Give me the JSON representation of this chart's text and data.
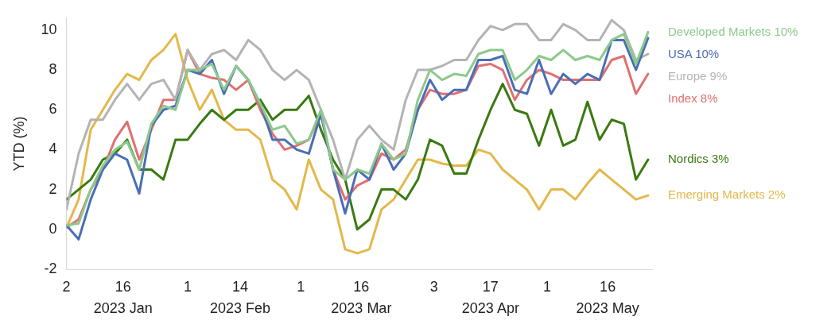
{
  "chart_data": {
    "type": "line",
    "ylabel": "YTD (%)",
    "x": [
      "2023-01-02",
      "2023-01-05",
      "2023-01-08",
      "2023-01-11",
      "2023-01-14",
      "2023-01-17",
      "2023-01-20",
      "2023-01-23",
      "2023-01-26",
      "2023-01-29",
      "2023-02-01",
      "2023-02-04",
      "2023-02-07",
      "2023-02-10",
      "2023-02-13",
      "2023-02-16",
      "2023-02-19",
      "2023-02-22",
      "2023-02-25",
      "2023-02-28",
      "2023-03-03",
      "2023-03-06",
      "2023-03-09",
      "2023-03-12",
      "2023-03-15",
      "2023-03-18",
      "2023-03-21",
      "2023-03-24",
      "2023-03-27",
      "2023-03-30",
      "2023-04-02",
      "2023-04-05",
      "2023-04-08",
      "2023-04-11",
      "2023-04-14",
      "2023-04-17",
      "2023-04-20",
      "2023-04-23",
      "2023-04-26",
      "2023-04-29",
      "2023-05-02",
      "2023-05-05",
      "2023-05-08",
      "2023-05-11",
      "2023-05-14",
      "2023-05-17",
      "2023-05-20",
      "2023-05-23",
      "2023-05-26"
    ],
    "series": [
      {
        "name": "Developed Markets 10%",
        "color": "#8cc98c",
        "values": [
          0.2,
          0.3,
          2.0,
          3.2,
          4.0,
          4.4,
          3.0,
          5.3,
          6.2,
          6.0,
          8.0,
          8.0,
          8.3,
          7.0,
          8.2,
          7.5,
          6.3,
          5.0,
          5.2,
          4.3,
          4.5,
          6.0,
          3.0,
          2.5,
          3.0,
          2.8,
          4.3,
          3.5,
          3.8,
          6.5,
          8.0,
          7.5,
          7.8,
          7.7,
          8.8,
          9.0,
          9.0,
          7.5,
          8.0,
          8.7,
          8.5,
          9.0,
          8.5,
          8.7,
          8.5,
          9.5,
          9.8,
          8.3,
          9.9
        ]
      },
      {
        "name": "USA 10%",
        "color": "#4a6eb5",
        "values": [
          0.2,
          -0.5,
          1.5,
          3.0,
          3.8,
          3.5,
          1.8,
          5.2,
          6.0,
          6.2,
          8.0,
          7.8,
          8.5,
          6.8,
          8.2,
          7.5,
          6.3,
          4.5,
          4.5,
          4.0,
          3.8,
          5.8,
          3.0,
          0.8,
          3.0,
          2.5,
          4.3,
          3.0,
          3.8,
          6.0,
          7.5,
          6.5,
          7.0,
          7.0,
          8.5,
          8.5,
          8.7,
          7.0,
          6.8,
          8.5,
          6.8,
          7.8,
          7.3,
          7.8,
          7.5,
          9.5,
          9.5,
          8.0,
          9.6
        ]
      },
      {
        "name": "Europe 9%",
        "color": "#b3b3b3",
        "values": [
          1.0,
          3.8,
          5.5,
          5.5,
          6.5,
          7.3,
          6.5,
          7.3,
          7.5,
          6.5,
          9.0,
          8.0,
          8.8,
          9.0,
          8.5,
          9.5,
          9.0,
          8.0,
          7.5,
          8.0,
          7.5,
          6.0,
          4.5,
          2.5,
          4.5,
          5.2,
          4.5,
          4.0,
          6.5,
          8.0,
          8.0,
          8.2,
          8.5,
          8.5,
          9.5,
          10.2,
          10.0,
          10.3,
          10.3,
          9.5,
          9.5,
          10.3,
          10.0,
          9.5,
          9.5,
          10.5,
          10.0,
          8.5,
          8.8
        ]
      },
      {
        "name": "Index 8%",
        "color": "#e07070",
        "values": [
          0.1,
          0.5,
          2.0,
          3.0,
          4.5,
          5.4,
          3.5,
          5.0,
          6.5,
          6.5,
          9.0,
          7.8,
          7.6,
          7.5,
          7.0,
          7.5,
          6.0,
          4.8,
          4.0,
          4.2,
          4.5,
          5.8,
          3.0,
          1.5,
          2.2,
          2.5,
          3.8,
          3.5,
          4.0,
          6.0,
          7.0,
          6.8,
          6.8,
          7.0,
          8.2,
          8.3,
          8.0,
          6.5,
          7.5,
          8.0,
          7.8,
          7.5,
          7.5,
          7.5,
          7.5,
          8.5,
          8.7,
          6.8,
          7.8
        ]
      },
      {
        "name": "Nordics 3%",
        "color": "#3a7a10",
        "values": [
          1.5,
          2.0,
          2.5,
          3.5,
          3.8,
          4.5,
          3.0,
          3.0,
          2.5,
          4.5,
          4.5,
          5.3,
          6.0,
          5.5,
          6.0,
          6.0,
          6.5,
          5.5,
          6.0,
          6.0,
          6.7,
          5.0,
          3.5,
          2.5,
          0.0,
          0.5,
          2.0,
          2.0,
          1.5,
          2.5,
          4.5,
          4.2,
          2.8,
          2.8,
          4.5,
          6.0,
          7.3,
          6.0,
          5.8,
          4.2,
          6.0,
          4.2,
          4.5,
          6.4,
          4.5,
          5.5,
          5.3,
          2.5,
          3.5
        ]
      },
      {
        "name": "Emerging Markets 2%",
        "color": "#e3b84a",
        "values": [
          0.1,
          1.5,
          5.0,
          6.0,
          7.0,
          7.8,
          7.5,
          8.5,
          9.0,
          9.8,
          7.5,
          6.0,
          7.0,
          5.5,
          5.0,
          5.0,
          4.5,
          2.5,
          2.0,
          1.0,
          3.5,
          2.0,
          1.5,
          -1.0,
          -1.2,
          -1.0,
          1.0,
          1.5,
          2.5,
          3.5,
          3.5,
          3.3,
          3.2,
          3.2,
          4.0,
          3.8,
          3.0,
          2.5,
          2.0,
          1.0,
          2.0,
          2.0,
          1.5,
          2.3,
          3.0,
          2.5,
          2.0,
          1.5,
          1.7
        ]
      }
    ],
    "xlim": [
      "2023-01-02",
      "2023-05-27"
    ],
    "xticks": [
      {
        "value": "2023-01-02",
        "label": "2"
      },
      {
        "value": "2023-01-16",
        "label": "16\n2023 Jan"
      },
      {
        "value": "2023-02-01",
        "label": "1"
      },
      {
        "value": "2023-02-14",
        "label": "14\n2023 Feb"
      },
      {
        "value": "2023-03-01",
        "label": "1"
      },
      {
        "value": "2023-03-16",
        "label": "16\n2023 Mar"
      },
      {
        "value": "2023-04-03",
        "label": "3"
      },
      {
        "value": "2023-04-17",
        "label": "17\n2023 Apr"
      },
      {
        "value": "2023-05-01",
        "label": "1"
      },
      {
        "value": "2023-05-16",
        "label": "16\n2023 May"
      }
    ],
    "ylim": [
      -2,
      10.6
    ],
    "yticks": [
      -2,
      0,
      2,
      4,
      6,
      8,
      10
    ],
    "grid": false,
    "legend": false,
    "marker": "none",
    "line_style": "solid"
  }
}
